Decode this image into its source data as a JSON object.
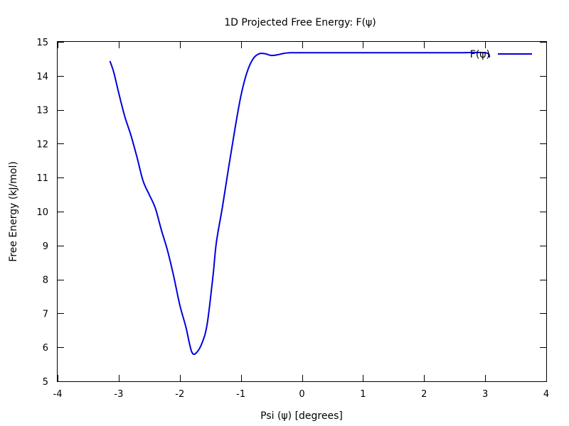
{
  "chart_data": {
    "type": "line",
    "title": "1D Projected Free Energy: F(ψ)",
    "xlabel": "Psi (ψ) [degrees]",
    "ylabel": "Free Energy (kJ/mol)",
    "xlim": [
      -4,
      4
    ],
    "ylim": [
      5,
      15
    ],
    "x_ticks": [
      -4,
      -3,
      -2,
      -1,
      0,
      1,
      2,
      3,
      4
    ],
    "y_ticks": [
      5,
      6,
      7,
      8,
      9,
      10,
      11,
      12,
      13,
      14,
      15
    ],
    "grid": false,
    "legend_position": "top-right",
    "series": [
      {
        "name": "F(ψ)",
        "color": "#0000dd",
        "x": [
          -3.14,
          -3.08,
          -3.0,
          -2.9,
          -2.8,
          -2.7,
          -2.6,
          -2.5,
          -2.4,
          -2.3,
          -2.2,
          -2.1,
          -2.0,
          -1.9,
          -1.8,
          -1.7,
          -1.6,
          -1.55,
          -1.5,
          -1.45,
          -1.4,
          -1.3,
          -1.2,
          -1.1,
          -1.0,
          -0.9,
          -0.8,
          -0.7,
          -0.6,
          -0.5,
          -0.4,
          -0.3,
          -0.2,
          -0.15,
          -0.1,
          0.0,
          0.1,
          0.2,
          0.5,
          1.0,
          1.5,
          2.0,
          2.5,
          3.0,
          3.07
        ],
        "y": [
          14.42,
          14.1,
          13.5,
          12.8,
          12.25,
          11.6,
          10.9,
          10.5,
          10.1,
          9.45,
          8.85,
          8.1,
          7.25,
          6.6,
          5.85,
          5.9,
          6.3,
          6.7,
          7.4,
          8.2,
          9.1,
          10.15,
          11.3,
          12.4,
          13.4,
          14.1,
          14.5,
          14.65,
          14.65,
          14.6,
          14.62,
          14.66,
          14.68,
          14.68,
          14.68,
          14.68,
          14.68,
          14.68,
          14.68,
          14.68,
          14.68,
          14.68,
          14.68,
          14.68,
          14.56
        ]
      }
    ]
  }
}
